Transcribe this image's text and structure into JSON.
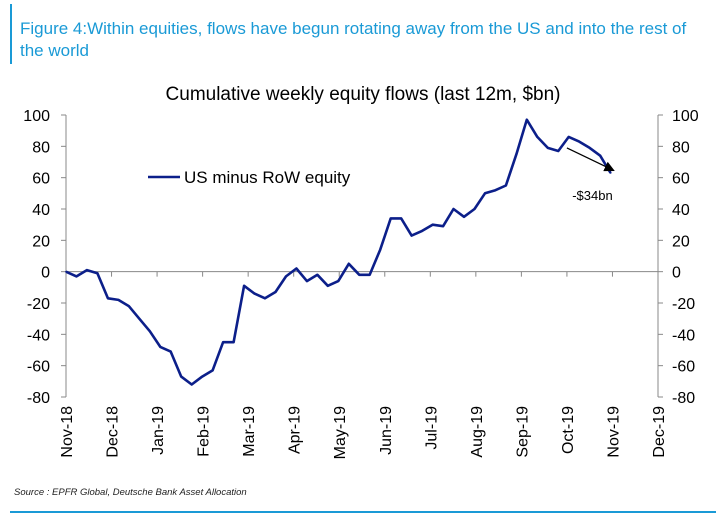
{
  "figure": {
    "title": "Figure 4:Within equities, flows have begun rotating away from the US and into the rest of the world",
    "source": "Source : EPFR Global, Deutsche Bank Asset Allocation",
    "accent_color": "#1a9ad6"
  },
  "chart_data": {
    "type": "line",
    "title": "Cumulative weekly equity flows (last 12m, $bn)",
    "xlabel": "",
    "ylabel": "",
    "x_tick_labels": [
      "Nov-18",
      "Dec-18",
      "Jan-19",
      "Feb-19",
      "Mar-19",
      "Apr-19",
      "May-19",
      "Jun-19",
      "Jul-19",
      "Aug-19",
      "Sep-19",
      "Oct-19",
      "Nov-19",
      "Dec-19"
    ],
    "ylim": [
      -80,
      100
    ],
    "y_ticks": [
      -80,
      -60,
      -40,
      -20,
      0,
      20,
      40,
      60,
      80,
      100
    ],
    "y_tick_labels": [
      "-80",
      "-60",
      "-40",
      "-20",
      "0",
      "20",
      "40",
      "60",
      "80",
      "100"
    ],
    "secondary_y_axis": true,
    "grid": false,
    "legend": {
      "placement": "top-left",
      "entries": [
        "US minus RoW equity"
      ]
    },
    "series": [
      {
        "name": "US minus RoW equity",
        "color": "#0c1f8a",
        "x_month_index": [
          0,
          0.23,
          0.46,
          0.69,
          0.92,
          1.15,
          1.38,
          1.61,
          1.84,
          2.07,
          2.3,
          2.53,
          2.76,
          2.99,
          3.22,
          3.45,
          3.68,
          3.91,
          4.14,
          4.37,
          4.6,
          4.83,
          5.06,
          5.29,
          5.52,
          5.75,
          5.98,
          6.21,
          6.44,
          6.67,
          6.9,
          7.13,
          7.36,
          7.59,
          7.82,
          8.05,
          8.28,
          8.51,
          8.74,
          8.97,
          9.2,
          9.43,
          9.66,
          9.89,
          10.12,
          10.35,
          10.58,
          10.81,
          11.04,
          11.27,
          11.5,
          11.73,
          11.96
        ],
        "values": [
          0,
          -3,
          1,
          -1,
          -17,
          -18,
          -22,
          -30,
          -38,
          -48,
          -51,
          -67,
          -72,
          -67,
          -63,
          -45,
          -45,
          -9,
          -14,
          -17,
          -13,
          -3,
          2,
          -6,
          -2,
          -9,
          -6,
          5,
          -2,
          -2,
          14,
          34,
          34,
          23,
          26,
          30,
          29,
          40,
          35,
          40,
          50,
          52,
          55,
          75,
          97,
          86,
          79,
          77,
          86,
          83,
          79,
          74,
          63
        ]
      }
    ],
    "annotations": [
      {
        "text": "-$34bn",
        "arrow_from": [
          11.0,
          79
        ],
        "arrow_to": [
          12.0,
          65
        ]
      }
    ]
  }
}
